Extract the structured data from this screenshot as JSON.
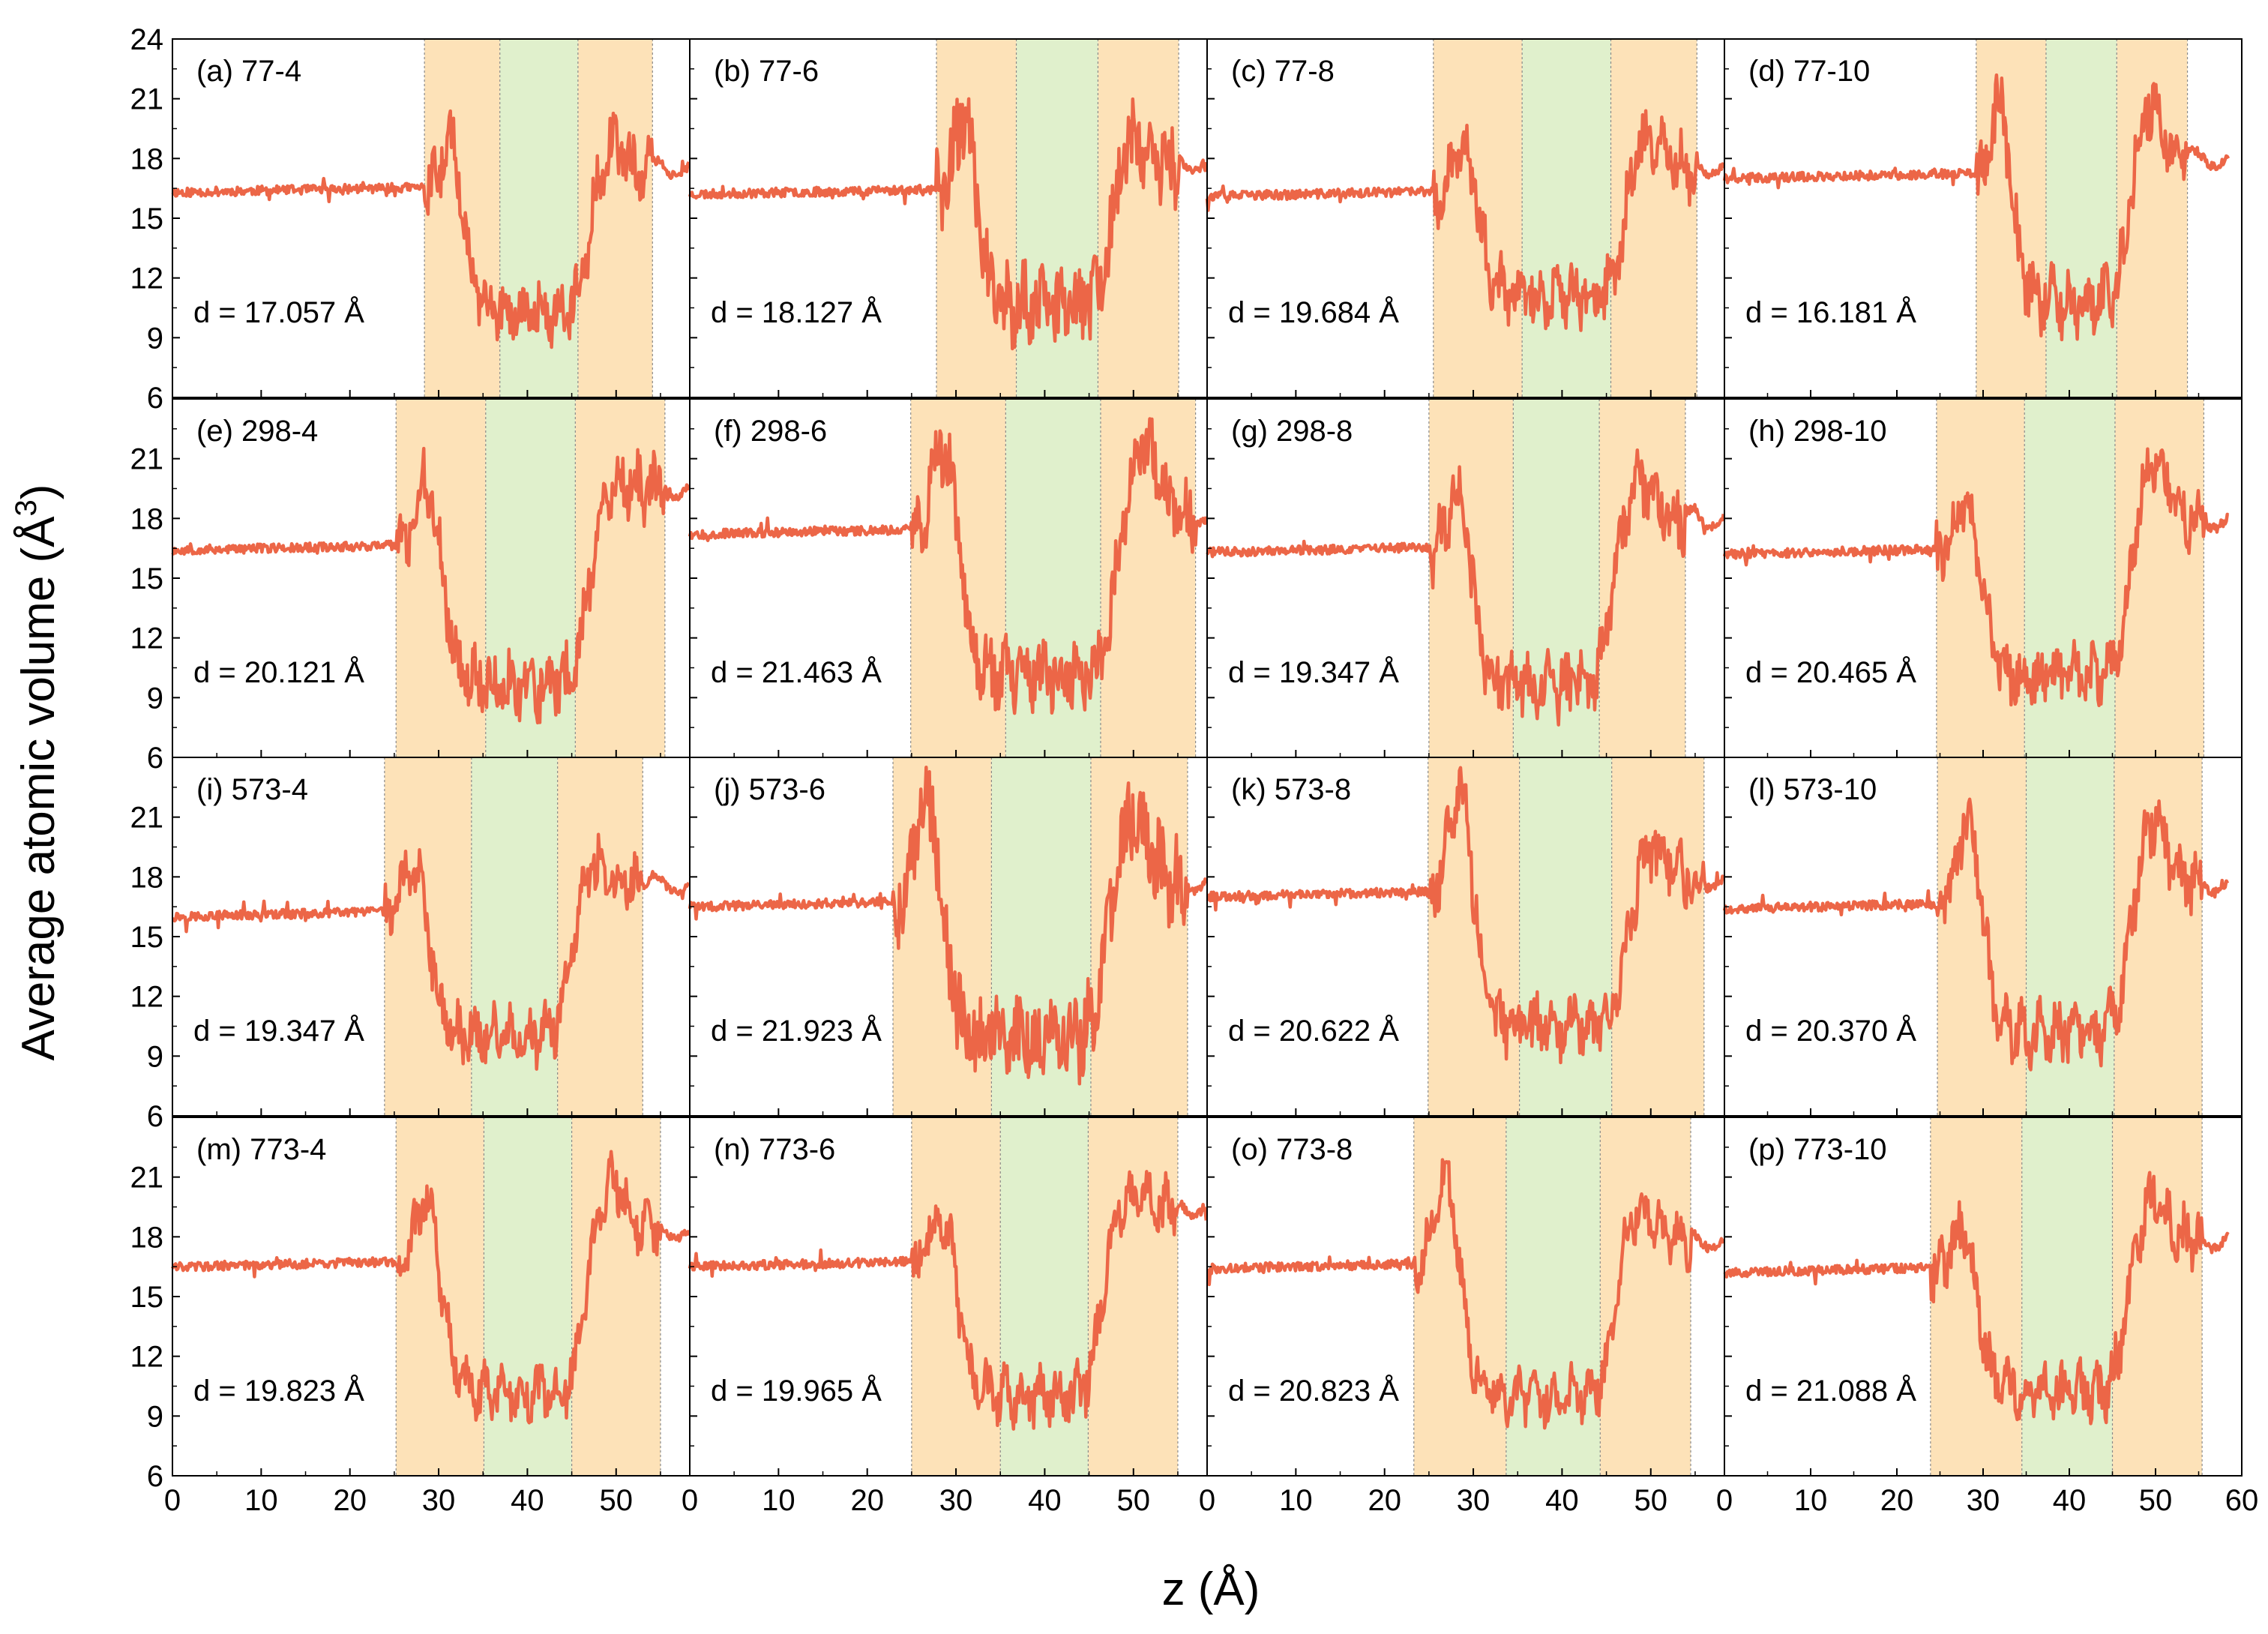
{
  "chart_data": {
    "type": "line",
    "xlabel": "z (Å)",
    "ylabel_text": "Average atomic volume (Å",
    "ylabel_superscript": "3",
    "ylabel_close": ")",
    "xlim": [
      0,
      60
    ],
    "ylim": [
      6,
      24
    ],
    "xticks": [
      0,
      10,
      20,
      30,
      40,
      50
    ],
    "xticks_last_column": [
      0,
      10,
      20,
      30,
      40,
      50,
      60
    ],
    "yticks": [
      6,
      9,
      12,
      15,
      18,
      21
    ],
    "yticks_top_row": [
      6,
      9,
      12,
      15,
      18,
      21,
      24
    ],
    "line_color": "#ec6647",
    "interface_color": "#fde2b8",
    "core_color": "#e0f0cc",
    "panels": [
      {
        "label": "(a) 77-4",
        "d": "d = 17.057 Å",
        "zones": [
          28.4,
          36.9,
          45.7,
          54.1
        ],
        "left": 16.3,
        "right": 17.5,
        "peaks": [
          19.5,
          18.8
        ],
        "dip": 10.2,
        "noise": 1.2,
        "seed": 11
      },
      {
        "label": "(b) 77-6",
        "d": "d = 18.127 Å",
        "zones": [
          27.8,
          36.8,
          46.0,
          55.1
        ],
        "left": 16.2,
        "right": 17.8,
        "peaks": [
          20.6,
          19.0
        ],
        "dip": 10.5,
        "noise": 1.8,
        "seed": 23
      },
      {
        "label": "(c) 77-8",
        "d": "d = 19.684 Å",
        "zones": [
          25.5,
          35.5,
          45.5,
          55.2
        ],
        "left": 16.1,
        "right": 17.6,
        "peaks": [
          19.2,
          19.3
        ],
        "dip": 11.0,
        "noise": 1.3,
        "seed": 37
      },
      {
        "label": "(d) 77-10",
        "d": "d = 16.181 Å",
        "zones": [
          29.2,
          37.3,
          45.5,
          53.7
        ],
        "left": 17.0,
        "right": 18.0,
        "peaks": [
          21.5,
          20.8
        ],
        "dip": 10.8,
        "noise": 1.3,
        "seed": 41
      },
      {
        "label": "(e) 298-4",
        "d": "d = 20.121 Å",
        "zones": [
          25.2,
          35.3,
          45.4,
          55.5
        ],
        "left": 16.4,
        "right": 19.5,
        "peaks": [
          20.4,
          20.1
        ],
        "dip": 9.6,
        "noise": 1.4,
        "seed": 53
      },
      {
        "label": "(f) 298-6",
        "d": "d = 21.463 Å",
        "zones": [
          24.9,
          35.6,
          46.3,
          57.0
        ],
        "left": 17.2,
        "right": 18.0,
        "peaks": [
          22.0,
          21.8
        ],
        "dip": 10.2,
        "noise": 1.4,
        "seed": 67
      },
      {
        "label": "(g) 298-8",
        "d": "d = 19.347 Å",
        "zones": [
          25.0,
          34.5,
          44.2,
          53.9
        ],
        "left": 16.3,
        "right": 18.0,
        "peaks": [
          19.7,
          19.6
        ],
        "dip": 9.6,
        "noise": 1.4,
        "seed": 71
      },
      {
        "label": "(h) 298-10",
        "d": "d = 20.465 Å",
        "zones": [
          24.6,
          34.8,
          45.3,
          55.6
        ],
        "left": 16.2,
        "right": 17.9,
        "peaks": [
          19.0,
          20.8
        ],
        "dip": 10.0,
        "noise": 1.2,
        "seed": 83
      },
      {
        "label": "(i) 573-4",
        "d": "d = 19.347 Å",
        "zones": [
          23.9,
          33.7,
          43.4,
          53.0
        ],
        "left": 16.0,
        "right": 17.6,
        "peaks": [
          19.0,
          18.7
        ],
        "dip": 10.0,
        "noise": 1.1,
        "seed": 97
      },
      {
        "label": "(j) 573-6",
        "d": "d = 21.923 Å",
        "zones": [
          22.9,
          34.0,
          45.2,
          56.1
        ],
        "left": 16.5,
        "right": 17.7,
        "peaks": [
          22.2,
          21.3
        ],
        "dip": 10.0,
        "noise": 1.9,
        "seed": 101
      },
      {
        "label": "(k) 573-8",
        "d": "d = 20.622 Å",
        "zones": [
          24.9,
          35.2,
          45.6,
          56.0
        ],
        "left": 17.0,
        "right": 17.8,
        "peaks": [
          22.8,
          19.6
        ],
        "dip": 10.5,
        "noise": 1.3,
        "seed": 113
      },
      {
        "label": "(l) 573-10",
        "d": "d = 20.370 Å",
        "zones": [
          24.7,
          35.0,
          45.2,
          55.4
        ],
        "left": 16.4,
        "right": 17.6,
        "peaks": [
          21.1,
          20.8
        ],
        "dip": 10.2,
        "noise": 1.2,
        "seed": 127
      },
      {
        "label": "(m) 773-4",
        "d": "d = 19.823 Å",
        "zones": [
          25.2,
          35.1,
          45.0,
          55.0
        ],
        "left": 16.5,
        "right": 18.3,
        "peaks": [
          20.5,
          20.8
        ],
        "dip": 10.2,
        "noise": 1.0,
        "seed": 131
      },
      {
        "label": "(n) 773-6",
        "d": "d = 19.965 Å",
        "zones": [
          25.0,
          35.0,
          44.9,
          55.0
        ],
        "left": 16.5,
        "right": 19.5,
        "peaks": [
          19.6,
          20.2
        ],
        "dip": 10.0,
        "noise": 1.1,
        "seed": 149
      },
      {
        "label": "(o) 773-8",
        "d": "d = 20.823 Å",
        "zones": [
          23.3,
          33.7,
          44.3,
          54.5
        ],
        "left": 16.4,
        "right": 17.8,
        "peaks": [
          21.3,
          19.3
        ],
        "dip": 10.0,
        "noise": 1.0,
        "seed": 157
      },
      {
        "label": "(p) 773-10",
        "d": "d = 21.088 Å",
        "zones": [
          23.9,
          34.5,
          45.0,
          55.4
        ],
        "left": 16.2,
        "right": 17.8,
        "peaks": [
          18.5,
          20.0
        ],
        "dip": 10.2,
        "noise": 1.2,
        "seed": 163
      }
    ]
  }
}
